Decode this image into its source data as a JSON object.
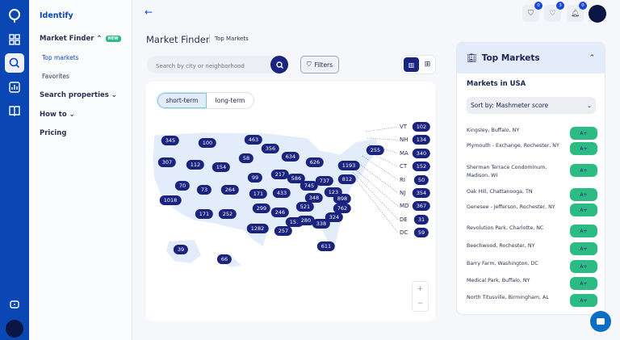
{
  "sidebar": {
    "brand": "Identify",
    "market_finder": "Market Finder",
    "new_badge": "NEW",
    "top_markets": "Top markets",
    "favorites": "Favorites",
    "search_properties": "Search properties",
    "how_to": "How to",
    "pricing": "Pricing"
  },
  "header": {
    "title": "Market Finder",
    "subtitle": "Top Markets",
    "filter_count": "0",
    "favorites_count": "3",
    "notifications_count": "0"
  },
  "search": {
    "placeholder": "Search by city or neighborhood",
    "filters_label": "Filters"
  },
  "map": {
    "tabs": [
      "short-term",
      "long-term"
    ],
    "active_tab": "short-term",
    "zoom_in": "+",
    "zoom_out": "−",
    "state_values": [
      "345",
      "100",
      "463",
      "356",
      "307",
      "112",
      "154",
      "58",
      "634",
      "626",
      "1193",
      "255",
      "99",
      "217",
      "586",
      "737",
      "812",
      "70",
      "73",
      "264",
      "171",
      "433",
      "745",
      "123",
      "898",
      "348",
      "1018",
      "299",
      "246",
      "521",
      "762",
      "171",
      "252",
      "324",
      "157",
      "280",
      "338",
      "1282",
      "257",
      "611",
      "39",
      "66"
    ],
    "small_states": [
      {
        "state": "VT",
        "value": "102"
      },
      {
        "state": "NH",
        "value": "134"
      },
      {
        "state": "MA",
        "value": "340"
      },
      {
        "state": "CT",
        "value": "152"
      },
      {
        "state": "RI",
        "value": "50"
      },
      {
        "state": "NJ",
        "value": "354"
      },
      {
        "state": "MD",
        "value": "367"
      },
      {
        "state": "DE",
        "value": "31"
      },
      {
        "state": "DC",
        "value": "59"
      }
    ]
  },
  "panel": {
    "title": "Top Markets",
    "subtitle": "Markets in USA",
    "sort_label": "Sort by: Mashmeter score",
    "markets": [
      {
        "name": "Kingsley, Buffalo, NY",
        "grade": "A+"
      },
      {
        "name": "Plymouth - Exchange, Rochester, NY",
        "grade": "A+"
      },
      {
        "name": "Sherman Terrace Condominum, Madison, WI",
        "grade": "A+"
      },
      {
        "name": "Oak Hill, Chattanooga, TN",
        "grade": "A+"
      },
      {
        "name": "Genesee - Jefferson, Rochester, NY",
        "grade": "A+"
      },
      {
        "name": "Revolution Park, Charlotte, NC",
        "grade": "A+"
      },
      {
        "name": "Beechwood, Rochester, NY",
        "grade": "A+"
      },
      {
        "name": "Barry Farm, Washington, DC",
        "grade": "A+"
      },
      {
        "name": "Medical Park, Buffalo, NY",
        "grade": "A+"
      },
      {
        "name": "North Titusville, Birmingham, AL",
        "grade": "A+"
      }
    ]
  },
  "colors": {
    "brand": "#0a47b5",
    "badge": "#1a237e",
    "grade": "#2dbb84",
    "map_fill": "#e3ecfb"
  }
}
